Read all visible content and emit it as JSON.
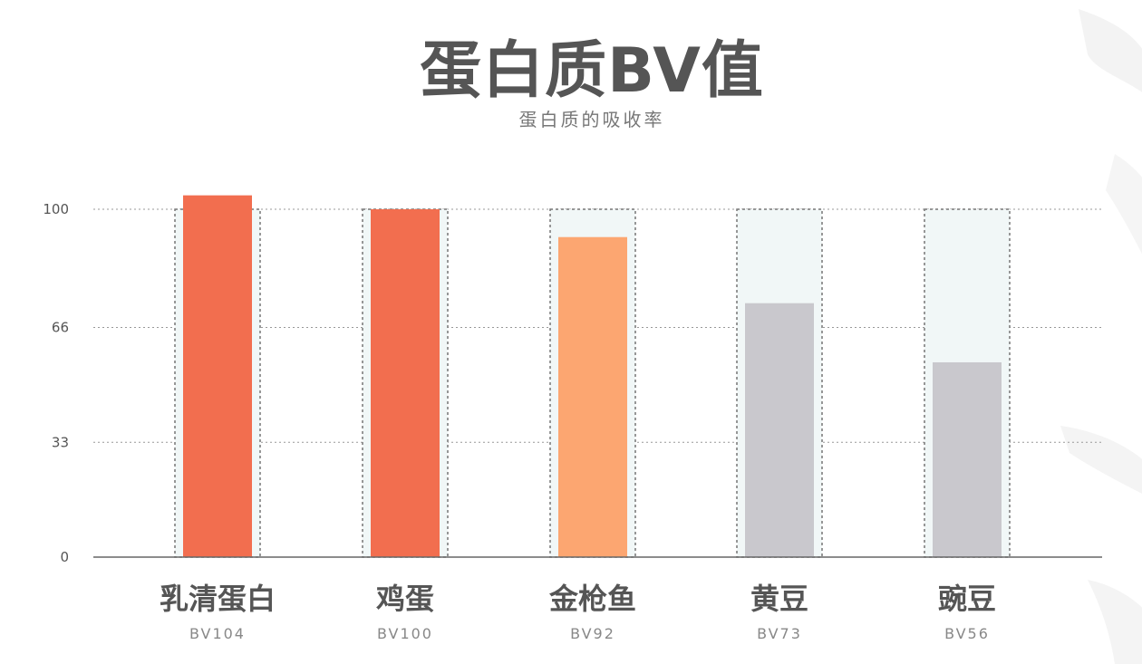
{
  "title": "蛋白质BV值",
  "subtitle": "蛋白质的吸收率",
  "colors": {
    "high": "#f26e4f",
    "mid": "#fca671",
    "low": "#c9c8cd",
    "slot": "#f1f7f7",
    "text": "#555555",
    "grid": "#999999"
  },
  "chart_data": {
    "type": "bar",
    "title": "蛋白质BV值",
    "subtitle": "蛋白质的吸收率",
    "categories": [
      "乳清蛋白",
      "鸡蛋",
      "金枪鱼",
      "黄豆",
      "豌豆"
    ],
    "category_sublabels": [
      "BV104",
      "BV100",
      "BV92",
      "BV73",
      "BV56"
    ],
    "values": [
      104,
      100,
      92,
      73,
      56
    ],
    "bar_colors": [
      "#f26e4f",
      "#f26e4f",
      "#fca671",
      "#c9c8cd",
      "#c9c8cd"
    ],
    "yticks": [
      0,
      33,
      66,
      100
    ],
    "ylim": [
      0,
      100
    ],
    "grid": true,
    "xlabel": "",
    "ylabel": ""
  }
}
